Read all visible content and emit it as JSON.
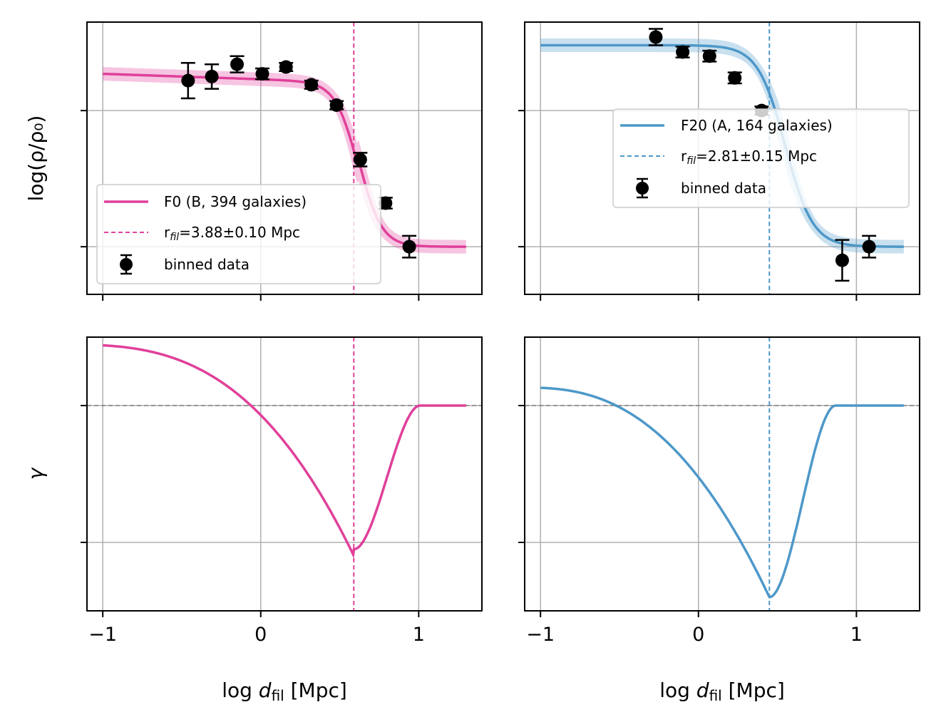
{
  "colors": {
    "pink": "#e0409a",
    "blue": "#4d98c9",
    "grid": "#b0b0b0",
    "zero_line": "#808080"
  },
  "axes": {
    "top_ylabel": "log(ρ/ρ₀)",
    "bottom_ylabel": "γ",
    "xlabel_left": {
      "main": "log ",
      "var": "d",
      "sub": "fil",
      "unit": " [Mpc]"
    },
    "xlabel_right": {
      "main": "log ",
      "var": "d",
      "sub": "fil",
      "unit": " [Mpc]"
    },
    "x_tick_labels": [
      "−1",
      "0",
      "1"
    ]
  },
  "legends": {
    "left": {
      "fit_label": "F0 (B, 394 galaxies)",
      "rfil_prefix": "r",
      "rfil_sub": "fil",
      "rfil_value": "=3.88±0.10 Mpc",
      "data_label": "binned data"
    },
    "right": {
      "fit_label": "F20 (A, 164 galaxies)",
      "rfil_prefix": "r",
      "rfil_sub": "fil",
      "rfil_value": "=2.81±0.15 Mpc",
      "data_label": "binned data"
    }
  },
  "chart_data": [
    {
      "panel": "top-left",
      "type": "scatter",
      "color": "pink",
      "xlim": [
        -1.1,
        1.4
      ],
      "xticks": [
        -1,
        0,
        1
      ],
      "r_fil_log": 0.589,
      "fit": {
        "plateau": 1.27,
        "floor": 0.0,
        "r0": 0.62,
        "alpha": 6.0,
        "slope": 0.04,
        "band": 0.05
      },
      "points": [
        {
          "x": -0.46,
          "y": 1.22,
          "err": 0.13
        },
        {
          "x": -0.31,
          "y": 1.25,
          "err": 0.09
        },
        {
          "x": -0.15,
          "y": 1.34,
          "err": 0.06
        },
        {
          "x": 0.01,
          "y": 1.27,
          "err": 0.04
        },
        {
          "x": 0.16,
          "y": 1.32,
          "err": 0.03
        },
        {
          "x": 0.32,
          "y": 1.19,
          "err": 0.03
        },
        {
          "x": 0.48,
          "y": 1.04,
          "err": 0.03
        },
        {
          "x": 0.63,
          "y": 0.64,
          "err": 0.05
        },
        {
          "x": 0.79,
          "y": 0.32,
          "err": 0.04
        },
        {
          "x": 0.94,
          "y": 0.0,
          "err": 0.08
        }
      ]
    },
    {
      "panel": "top-right",
      "type": "scatter",
      "color": "blue",
      "xlim": [
        -1.1,
        1.4
      ],
      "xticks": [
        -1,
        0,
        1
      ],
      "r_fil_log": 0.449,
      "fit": {
        "plateau": 1.48,
        "floor": 0.0,
        "r0": 0.55,
        "alpha": 5.0,
        "slope": 0.0,
        "band": 0.05
      },
      "points": [
        {
          "x": -0.27,
          "y": 1.54,
          "err": 0.06
        },
        {
          "x": -0.1,
          "y": 1.43,
          "err": 0.04
        },
        {
          "x": 0.07,
          "y": 1.4,
          "err": 0.04
        },
        {
          "x": 0.23,
          "y": 1.24,
          "err": 0.04
        },
        {
          "x": 0.4,
          "y": 1.0,
          "err": 0.03
        },
        {
          "x": 0.91,
          "y": -0.1,
          "err": 0.15
        },
        {
          "x": 1.08,
          "y": 0.0,
          "err": 0.08
        }
      ]
    },
    {
      "panel": "bottom-left",
      "type": "line",
      "color": "pink",
      "xlim": [
        -1.1,
        1.4
      ],
      "xticks": [
        -1,
        0,
        1
      ],
      "r_fil_log": 0.589
    },
    {
      "panel": "bottom-right",
      "type": "line",
      "color": "blue",
      "xlim": [
        -1.1,
        1.4
      ],
      "xticks": [
        -1,
        0,
        1
      ],
      "r_fil_log": 0.449
    }
  ]
}
